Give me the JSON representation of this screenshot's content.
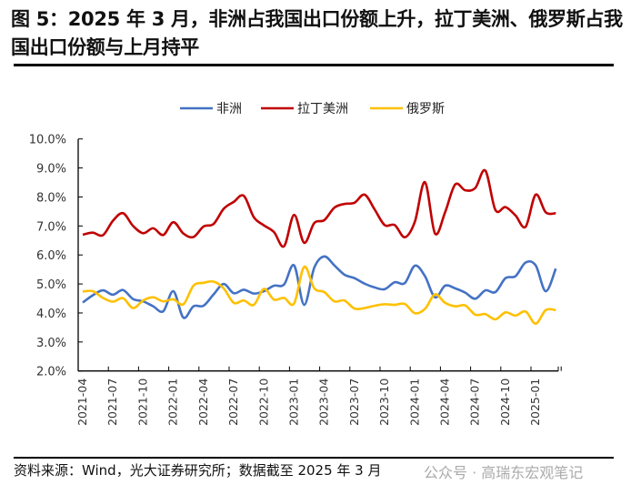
{
  "title": "图 5：2025 年 3 月，非洲占我国出口份额上升，拉丁美洲、俄罗斯占我国出口份额与上月持平",
  "source": "资料来源：Wind，光大证券研究所；数据截至 2025 年 3 月",
  "watermark": "公众号 · 高瑞东宏观笔记",
  "chart_data": {
    "type": "line",
    "title": "",
    "xlabel": "",
    "ylabel": "",
    "ylim": [
      2,
      10
    ],
    "yticks": [
      "2.0%",
      "3.0%",
      "4.0%",
      "5.0%",
      "6.0%",
      "7.0%",
      "8.0%",
      "9.0%",
      "10.0%"
    ],
    "xtick_labels": [
      "2021-04",
      "2021-07",
      "2021-10",
      "2022-01",
      "2022-04",
      "2022-07",
      "2022-10",
      "2023-01",
      "2023-04",
      "2023-07",
      "2023-10",
      "2024-01",
      "2024-04",
      "2024-07",
      "2024-10",
      "2025-01"
    ],
    "x_start": "2021-04",
    "x_end": "2025-03",
    "grid": false,
    "legend_position": "top",
    "series": [
      {
        "name": "非洲",
        "color": "#4472C4",
        "values": [
          4.36,
          4.61,
          4.78,
          4.63,
          4.79,
          4.48,
          4.4,
          4.23,
          4.06,
          4.75,
          3.84,
          4.23,
          4.25,
          4.64,
          5.0,
          4.68,
          4.8,
          4.67,
          4.75,
          4.94,
          4.98,
          5.64,
          4.28,
          5.56,
          5.95,
          5.64,
          5.32,
          5.2,
          5.01,
          4.88,
          4.82,
          5.06,
          5.03,
          5.63,
          5.27,
          4.54,
          4.94,
          4.85,
          4.7,
          4.49,
          4.78,
          4.72,
          5.2,
          5.27,
          5.74,
          5.64,
          4.75,
          5.53
        ]
      },
      {
        "name": "拉丁美洲",
        "color": "#C00000",
        "values": [
          6.7,
          6.77,
          6.68,
          7.18,
          7.44,
          7.0,
          6.75,
          6.92,
          6.69,
          7.13,
          6.74,
          6.62,
          6.98,
          7.07,
          7.59,
          7.83,
          8.04,
          7.3,
          7.02,
          6.79,
          6.3,
          7.38,
          6.42,
          7.1,
          7.2,
          7.63,
          7.76,
          7.8,
          8.08,
          7.57,
          7.03,
          7.03,
          6.61,
          7.15,
          8.51,
          6.74,
          7.47,
          8.43,
          8.23,
          8.31,
          8.91,
          7.55,
          7.65,
          7.36,
          6.97,
          8.08,
          7.47,
          7.44
        ]
      },
      {
        "name": "俄罗斯",
        "color": "#FFC000",
        "values": [
          4.74,
          4.75,
          4.52,
          4.39,
          4.51,
          4.17,
          4.43,
          4.54,
          4.4,
          4.47,
          4.3,
          4.94,
          5.04,
          5.08,
          4.85,
          4.35,
          4.43,
          4.28,
          4.83,
          4.46,
          4.52,
          4.33,
          5.59,
          4.85,
          4.72,
          4.4,
          4.43,
          4.15,
          4.17,
          4.25,
          4.3,
          4.28,
          4.31,
          3.99,
          4.14,
          4.64,
          4.35,
          4.23,
          4.26,
          3.94,
          3.96,
          3.78,
          4.02,
          3.91,
          4.05,
          3.63,
          4.1,
          4.1
        ]
      }
    ]
  }
}
